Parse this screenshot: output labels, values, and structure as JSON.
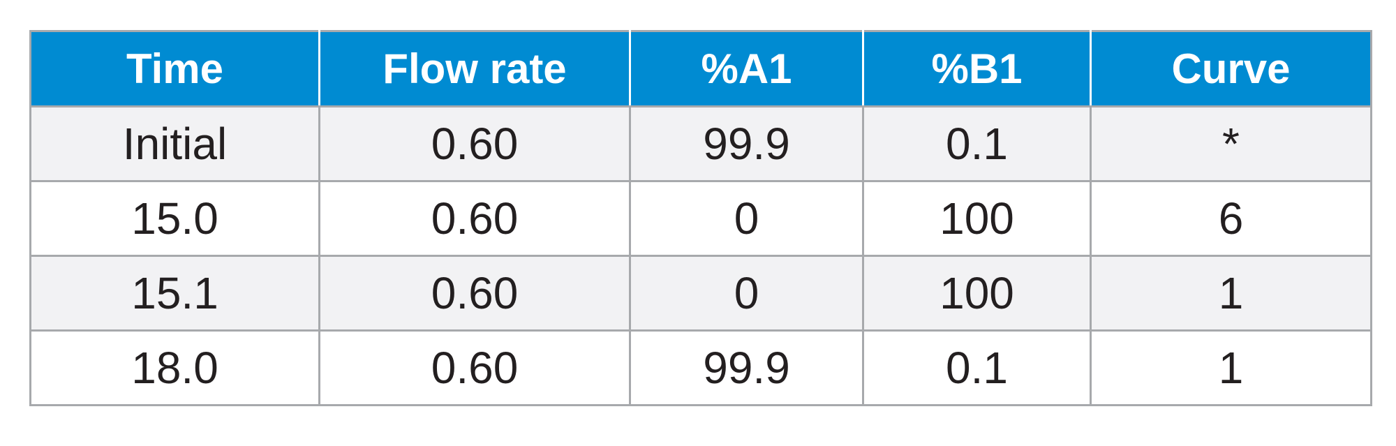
{
  "table": {
    "headers": [
      "Time",
      "Flow rate",
      "%A1",
      "%B1",
      "Curve"
    ],
    "rows": [
      [
        "Initial",
        "0.60",
        "99.9",
        "0.1",
        "*"
      ],
      [
        "15.0",
        "0.60",
        "0",
        "100",
        "6"
      ],
      [
        "15.1",
        "0.60",
        "0",
        "100",
        "1"
      ],
      [
        "18.0",
        "0.60",
        "99.9",
        "0.1",
        "1"
      ]
    ]
  },
  "colors": {
    "header_background": "#008bd2",
    "header_text": "#ffffff",
    "shaded_row": "#f2f2f4",
    "border": "#a7a9ac",
    "cell_text": "#231f20"
  }
}
